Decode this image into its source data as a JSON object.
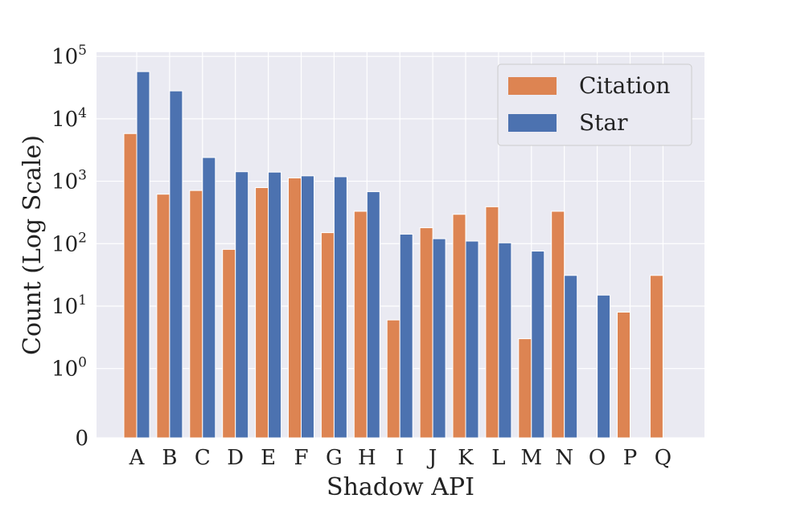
{
  "chart_data": {
    "type": "bar",
    "title": "",
    "xlabel": "Shadow API",
    "ylabel": "Count (Log Scale)",
    "yscale": "symlog",
    "ylim": [
      0,
      110000
    ],
    "yticks": [
      {
        "value": 0,
        "base": "0",
        "exp": ""
      },
      {
        "value": 1,
        "base": "10",
        "exp": "0"
      },
      {
        "value": 10,
        "base": "10",
        "exp": "1"
      },
      {
        "value": 100,
        "base": "10",
        "exp": "2"
      },
      {
        "value": 1000,
        "base": "10",
        "exp": "3"
      },
      {
        "value": 10000,
        "base": "10",
        "exp": "4"
      },
      {
        "value": 100000,
        "base": "10",
        "exp": "5"
      }
    ],
    "grid": true,
    "legend_position": "top-right",
    "categories": [
      "A",
      "B",
      "C",
      "D",
      "E",
      "F",
      "G",
      "H",
      "I",
      "J",
      "K",
      "L",
      "M",
      "N",
      "O",
      "P",
      "Q"
    ],
    "series": [
      {
        "name": "Citation",
        "color": "#dd8452",
        "values": [
          5800,
          620,
          710,
          81,
          790,
          1130,
          150,
          330,
          6,
          180,
          295,
          390,
          3,
          330,
          0,
          8,
          31
        ]
      },
      {
        "name": "Star",
        "color": "#4c72b0",
        "values": [
          57000,
          28000,
          2400,
          1420,
          1400,
          1220,
          1180,
          680,
          142,
          120,
          110,
          103,
          76,
          31,
          15,
          0,
          0
        ]
      }
    ],
    "background": "#eaeaf2"
  }
}
